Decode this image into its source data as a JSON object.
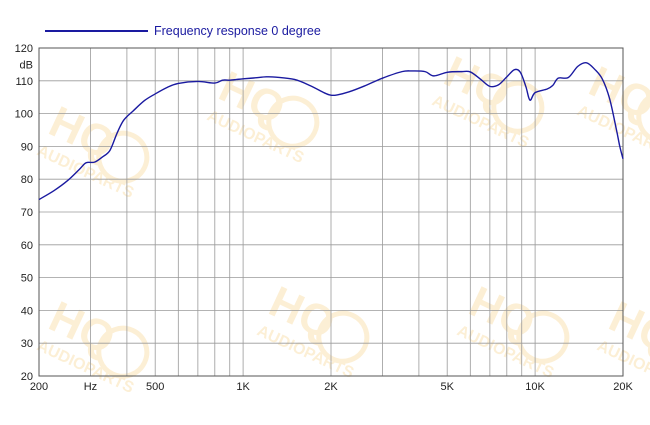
{
  "chart_data": {
    "type": "line",
    "title": "",
    "xlabel": "",
    "ylabel": "",
    "x_scale": "log",
    "xlim": [
      200,
      20000
    ],
    "ylim": [
      20,
      120
    ],
    "y_unit": "dB",
    "y_ticks": [
      20,
      30,
      40,
      50,
      60,
      70,
      80,
      90,
      100,
      110,
      120
    ],
    "x_tick_labels": [
      {
        "value": 200,
        "label": "200"
      },
      {
        "value": 300,
        "label": "Hz"
      },
      {
        "value": 500,
        "label": "500"
      },
      {
        "value": 1000,
        "label": "1K"
      },
      {
        "value": 2000,
        "label": "2K"
      },
      {
        "value": 5000,
        "label": "5K"
      },
      {
        "value": 10000,
        "label": "10K"
      },
      {
        "value": 20000,
        "label": "20K"
      }
    ],
    "grid": true,
    "legend": {
      "position": "top-left"
    },
    "watermark": "HQ AUDIOPARTS",
    "series": [
      {
        "name": "Frequency response 0 degree",
        "color": "#1a1aa0",
        "x": [
          200,
          225,
          250,
          275,
          290,
          310,
          330,
          350,
          370,
          390,
          420,
          460,
          500,
          550,
          600,
          700,
          800,
          850,
          900,
          950,
          1000,
          1100,
          1200,
          1300,
          1500,
          1700,
          1900,
          2000,
          2100,
          2300,
          2600,
          3000,
          3500,
          3800,
          4200,
          4500,
          5000,
          5600,
          6000,
          6500,
          7000,
          7500,
          8000,
          8500,
          8900,
          9300,
          9600,
          10000,
          11000,
          11500,
          12000,
          13000,
          14000,
          15000,
          16000,
          17000,
          18000,
          19000,
          19500,
          20000
        ],
        "y": [
          73.8,
          76.5,
          79.5,
          83,
          85,
          85.2,
          86.8,
          88.8,
          94,
          98,
          100.8,
          104,
          106,
          108,
          109.2,
          109.8,
          109.3,
          110.2,
          110.2,
          110.4,
          110.6,
          110.9,
          111.2,
          111.1,
          110.4,
          108.5,
          106.3,
          105.6,
          105.7,
          106.6,
          108.4,
          110.8,
          112.8,
          113,
          112.8,
          111.5,
          112.6,
          112.8,
          112.7,
          110.5,
          108.3,
          108.8,
          111.2,
          113.4,
          112.6,
          108.2,
          104.1,
          106.4,
          107.5,
          108.6,
          110.8,
          111,
          114.4,
          115.5,
          113.5,
          110.5,
          104.5,
          95,
          90,
          86.2
        ]
      }
    ]
  }
}
